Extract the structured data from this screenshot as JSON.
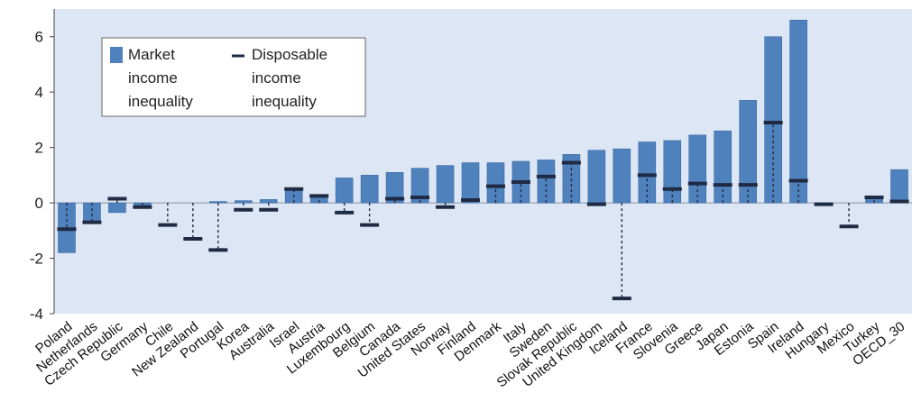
{
  "chart_data": {
    "type": "bar",
    "categories": [
      "Poland",
      "Netherlands",
      "Czech Republic",
      "Germany",
      "Chile",
      "New Zealand",
      "Portugal",
      "Korea",
      "Australia",
      "Israel",
      "Austria",
      "Luxembourg",
      "Belgium",
      "Canada",
      "United States",
      "Norway",
      "Finland",
      "Denmark",
      "Italy",
      "Sweden",
      "Slovak Republic",
      "United Kingdom",
      "Iceland",
      "France",
      "Slovenia",
      "Greece",
      "Japan",
      "Estonia",
      "Spain",
      "Ireland",
      "Hungary",
      "Mexico",
      "Turkey",
      "OECD_30"
    ],
    "series": [
      {
        "name": "Market income inequality",
        "values": [
          -1.8,
          -0.7,
          -0.35,
          -0.1,
          0,
          0,
          0.05,
          0.08,
          0.12,
          0.5,
          0.3,
          0.9,
          1.0,
          1.1,
          1.25,
          1.35,
          1.45,
          1.45,
          1.5,
          1.55,
          1.75,
          1.9,
          1.95,
          2.2,
          2.25,
          2.45,
          2.6,
          3.7,
          6.0,
          6.6,
          0,
          0,
          0.2,
          1.2
        ]
      },
      {
        "name": "Disposable income inequality",
        "values": [
          -0.95,
          -0.7,
          0.15,
          -0.15,
          -0.8,
          -1.3,
          -1.7,
          -0.25,
          -0.25,
          0.5,
          0.25,
          -0.35,
          -0.8,
          0.15,
          0.2,
          -0.15,
          0.1,
          0.6,
          0.75,
          0.95,
          1.45,
          -0.05,
          -3.45,
          1.0,
          0.5,
          0.7,
          0.65,
          0.65,
          2.9,
          0.8,
          -0.05,
          -0.85,
          0.2,
          0.05
        ]
      }
    ],
    "ylim": [
      -4,
      7
    ],
    "yticks": [
      -4,
      -2,
      0,
      2,
      4,
      6
    ],
    "grid": false,
    "legend": "top-left",
    "colors": {
      "market": "#4f81bd",
      "disposable": "#1f2a44",
      "plot_bg": "#dde6f4",
      "legend_bg": "#ffffff"
    },
    "legend_labels": {
      "market": [
        "Market",
        "income",
        "inequality"
      ],
      "disposable": [
        "Disposable",
        "income",
        "inequality"
      ]
    }
  }
}
